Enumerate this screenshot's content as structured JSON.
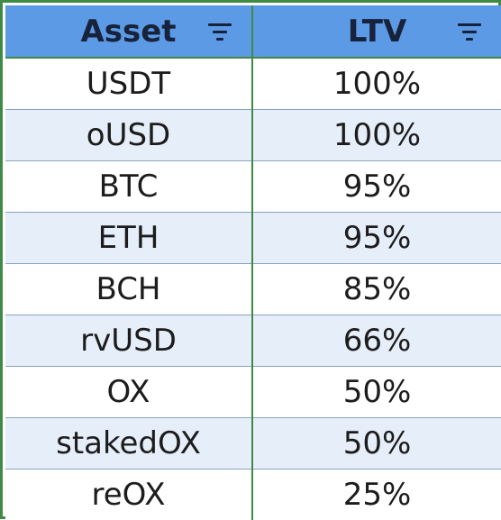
{
  "table": {
    "headers": {
      "asset": "Asset",
      "ltv": "LTV"
    },
    "rows": [
      {
        "asset": "USDT",
        "ltv": "100%"
      },
      {
        "asset": "oUSD",
        "ltv": "100%"
      },
      {
        "asset": "BTC",
        "ltv": "95%"
      },
      {
        "asset": "ETH",
        "ltv": "95%"
      },
      {
        "asset": "BCH",
        "ltv": "85%"
      },
      {
        "asset": "rvUSD",
        "ltv": "66%"
      },
      {
        "asset": "OX",
        "ltv": "50%"
      },
      {
        "asset": "stakedOX",
        "ltv": "50%"
      },
      {
        "asset": "reOX",
        "ltv": "25%"
      }
    ]
  },
  "icons": {
    "asset_filter": "filter-icon",
    "ltv_filter": "filter-icon"
  },
  "colors": {
    "header_bg": "#5c9ae6",
    "header_text": "#17233a",
    "row_alt_bg": "#e6eefa",
    "border": "#3f8a44"
  }
}
